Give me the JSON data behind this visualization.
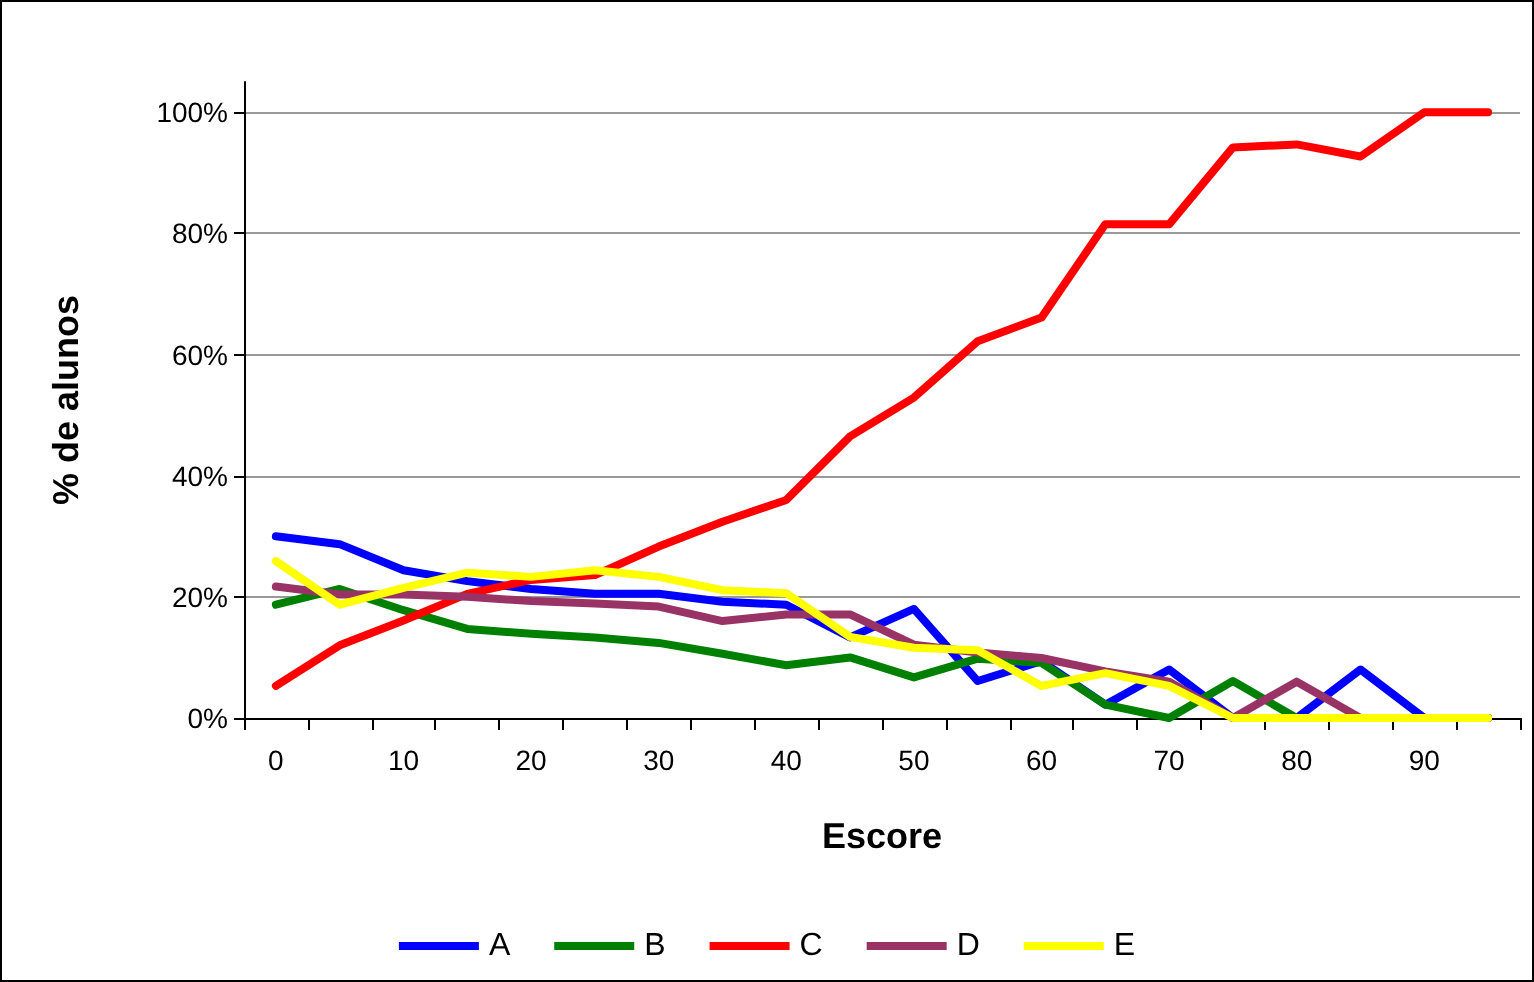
{
  "chart_data": {
    "type": "line",
    "xlabel": "Escore",
    "ylabel": "% de alunos",
    "categories": [
      "0",
      null,
      "10",
      null,
      "20",
      null,
      "30",
      null,
      "40",
      null,
      "50",
      null,
      "60",
      null,
      "70",
      null,
      "80",
      null,
      "90",
      null
    ],
    "series": [
      {
        "name": "A",
        "color": "#0000ff",
        "values": [
          30,
          28.7,
          24.4,
          22.6,
          21.3,
          20.5,
          20.5,
          19.2,
          18.7,
          13.3,
          18,
          6.1,
          9.4,
          2.2,
          8,
          0,
          0,
          8,
          0,
          0
        ]
      },
      {
        "name": "B",
        "color": "#008000",
        "values": [
          18.7,
          21.3,
          17.8,
          14.7,
          13.9,
          13.3,
          12.4,
          10.6,
          8.7,
          10,
          6.7,
          9.8,
          9.1,
          2.2,
          0,
          6.1,
          0,
          0,
          null,
          null
        ]
      },
      {
        "name": "C",
        "color": "#ff0000",
        "values": [
          5.3,
          12,
          16.1,
          20.5,
          22.8,
          23.6,
          28.3,
          32.4,
          36,
          46.5,
          52.9,
          62.2,
          66.1,
          81.5,
          81.5,
          94.2,
          94.7,
          92.7,
          100,
          100
        ]
      },
      {
        "name": "D",
        "color": "#993366",
        "values": [
          21.7,
          20.4,
          20.4,
          20,
          19.3,
          18.9,
          18.4,
          16,
          17.1,
          17.1,
          12.1,
          10.8,
          9.9,
          7.7,
          6,
          0,
          6,
          0,
          0,
          0
        ]
      },
      {
        "name": "E",
        "color": "#ffff00",
        "values": [
          25.9,
          18.7,
          21.5,
          24,
          23.3,
          24.4,
          23.3,
          21.1,
          20.6,
          13.4,
          11.6,
          11.2,
          5.3,
          7.4,
          5.3,
          0,
          0,
          0,
          0,
          0
        ]
      }
    ],
    "ylim": [
      0,
      105
    ],
    "yticks": [
      {
        "value": 0,
        "label": "0%"
      },
      {
        "value": 20,
        "label": "20%"
      },
      {
        "value": 40,
        "label": "40%"
      },
      {
        "value": 60,
        "label": "60%"
      },
      {
        "value": 80,
        "label": "80%"
      },
      {
        "value": 100,
        "label": "100%"
      }
    ],
    "grid": "y",
    "legend": "bottom",
    "marker": "none",
    "line_style": "solid"
  }
}
